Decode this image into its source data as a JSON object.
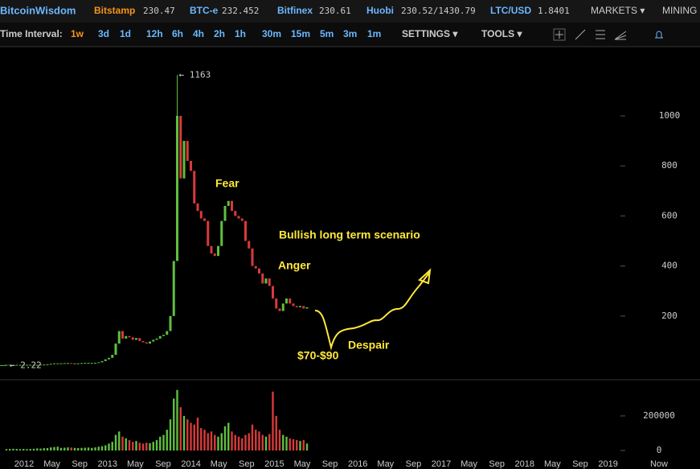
{
  "header": {
    "brand": "BitcoinWisdom",
    "tickers": [
      {
        "name": "Bitstamp",
        "price": "230.47"
      },
      {
        "name": "BTC-e",
        "price": "232.452"
      },
      {
        "name": "Bitfinex",
        "price": "230.61"
      },
      {
        "name": "Huobi",
        "price": "230.52/1430.79"
      },
      {
        "name": "LTC/USD",
        "price": "1.8401"
      }
    ],
    "menu": [
      "MARKETS ▾",
      "MINING"
    ]
  },
  "toolbar": {
    "label": "Time Interval:",
    "intervals": [
      "1w",
      "3d",
      "1d",
      "12h",
      "6h",
      "4h",
      "2h",
      "1h",
      "30m",
      "15m",
      "5m",
      "3m",
      "1m"
    ],
    "active": "1w",
    "menus": [
      "SETTINGS ▾",
      "TOOLS ▾"
    ]
  },
  "chart_data": {
    "type": "candlestick",
    "closes": [
      5,
      5,
      5,
      5,
      5,
      5,
      5,
      5,
      5,
      5,
      6,
      6,
      7,
      9,
      11,
      11,
      11,
      12,
      12,
      11,
      11,
      11,
      12,
      13,
      13,
      13,
      13,
      15,
      20,
      27,
      33,
      45,
      90,
      140,
      110,
      120,
      115,
      105,
      112,
      100,
      95,
      90,
      98,
      105,
      110,
      120,
      125,
      140,
      200,
      420,
      1000,
      750,
      900,
      820,
      780,
      650,
      620,
      590,
      580,
      480,
      450,
      440,
      480,
      580,
      640,
      660,
      620,
      600,
      590,
      580,
      500,
      470,
      400,
      390,
      370,
      330,
      350,
      320,
      270,
      230,
      220,
      250,
      270,
      250,
      240,
      235,
      240,
      230,
      235
    ],
    "volumes": [
      8000,
      9000,
      10000,
      9000,
      8000,
      9000,
      8000,
      9000,
      10000,
      12000,
      11000,
      13000,
      14000,
      18000,
      20000,
      22000,
      15000,
      16000,
      18000,
      17000,
      15000,
      14000,
      15000,
      16000,
      17000,
      15000,
      18000,
      22000,
      25000,
      30000,
      40000,
      50000,
      90000,
      110000,
      80000,
      70000,
      60000,
      50000,
      55000,
      45000,
      40000,
      45000,
      42000,
      50000,
      60000,
      80000,
      90000,
      120000,
      180000,
      300000,
      350000,
      250000,
      200000,
      180000,
      160000,
      150000,
      190000,
      130000,
      120000,
      100000,
      110000,
      90000,
      80000,
      100000,
      140000,
      160000,
      110000,
      90000,
      80000,
      70000,
      90000,
      100000,
      150000,
      120000,
      110000,
      90000,
      80000,
      95000,
      340000,
      200000,
      120000,
      90000,
      80000,
      70000,
      65000,
      60000,
      55000,
      60000,
      40000
    ],
    "up_color": "#5fbf3f",
    "down_color": "#d83a3a",
    "ylim": [
      -48,
      1270
    ],
    "yticks": [
      200,
      400,
      600,
      800,
      1000
    ],
    "volume_ylim": [
      0,
      395000
    ],
    "volume_yticks": [
      0,
      200000
    ],
    "max_marker": {
      "value": 1163,
      "label": "← 1163"
    },
    "min_marker": {
      "value": 2.22,
      "label": "← 2.22"
    },
    "x_labels": [
      "2012",
      "May",
      "Sep",
      "2013",
      "May",
      "Sep",
      "2014",
      "May",
      "Sep",
      "2015",
      "May",
      "Sep",
      "2016",
      "May",
      "Sep",
      "2017",
      "May",
      "Sep",
      "2018",
      "May",
      "Sep",
      "2019",
      "Now"
    ],
    "annotations": [
      "Fear",
      "Bullish long term scenario",
      "Anger",
      "$70-$90",
      "Despair"
    ]
  }
}
